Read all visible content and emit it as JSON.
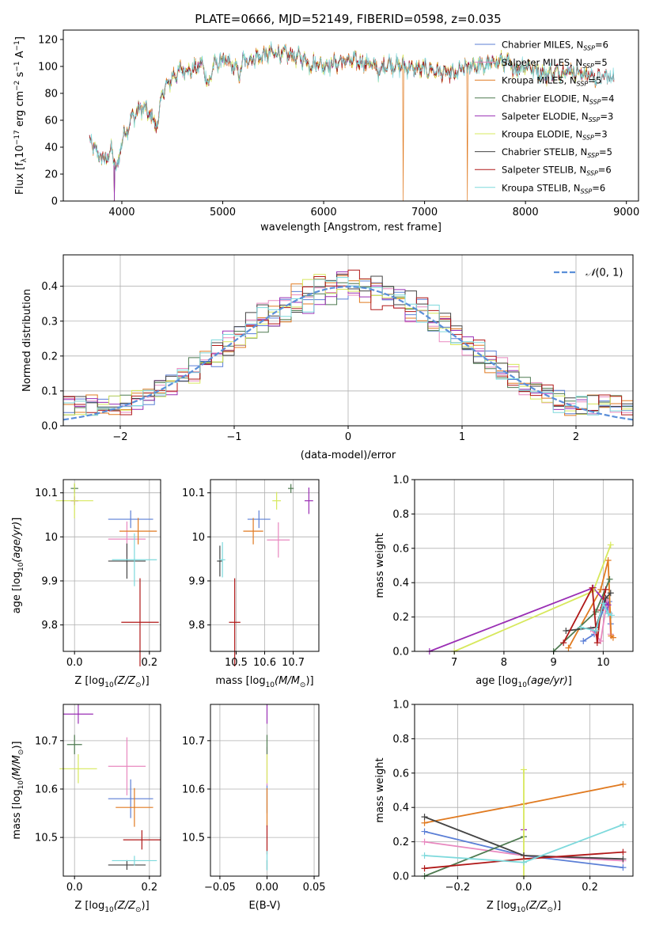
{
  "title": "PLATE=0666, MJD=52149, FIBERID=0598, z=0.035",
  "models": [
    {
      "name": "Chabrier MILES",
      "nssp": "6",
      "color": "#5b7fd6"
    },
    {
      "name": "Salpeter MILES",
      "nssp": "5",
      "color": "#e888bf"
    },
    {
      "name": "Kroupa MILES",
      "nssp": "5",
      "color": "#e07a20"
    },
    {
      "name": "Chabrier ELODIE",
      "nssp": "4",
      "color": "#4e7a50"
    },
    {
      "name": "Salpeter ELODIE",
      "nssp": "3",
      "color": "#9a2eb4"
    },
    {
      "name": "Kroupa ELODIE",
      "nssp": "3",
      "color": "#d7e85c"
    },
    {
      "name": "Chabrier STELIB",
      "nssp": "5",
      "color": "#444444"
    },
    {
      "name": "Salpeter STELIB",
      "nssp": "6",
      "color": "#b01818"
    },
    {
      "name": "Kroupa STELIB",
      "nssp": "6",
      "color": "#7dd9dc"
    }
  ],
  "chart_data": [
    {
      "type": "line",
      "title": "PLATE=0666, MJD=52149, FIBERID=0598, z=0.035",
      "xlabel": "wavelength [Angstrom, rest frame]",
      "ylabel_parts": [
        "Flux [f",
        "λ",
        "10",
        "−17",
        " erg cm",
        "−2",
        " s",
        "−1",
        " A",
        "−1",
        "]"
      ],
      "xlim": [
        3420,
        9120
      ],
      "ylim": [
        0,
        127
      ],
      "xticks": [
        4000,
        5000,
        6000,
        7000,
        8000,
        9000
      ],
      "yticks": [
        0,
        20,
        40,
        60,
        80,
        100,
        120
      ],
      "spectrum_anchors": [
        [
          3680,
          45
        ],
        [
          3760,
          35
        ],
        [
          3830,
          30
        ],
        [
          3900,
          38
        ],
        [
          3950,
          22
        ],
        [
          4000,
          45
        ],
        [
          4100,
          62
        ],
        [
          4200,
          70
        ],
        [
          4300,
          62
        ],
        [
          4350,
          55
        ],
        [
          4400,
          80
        ],
        [
          4500,
          92
        ],
        [
          4600,
          98
        ],
        [
          4700,
          97
        ],
        [
          4800,
          102
        ],
        [
          4860,
          85
        ],
        [
          4900,
          100
        ],
        [
          5000,
          105
        ],
        [
          5100,
          100
        ],
        [
          5175,
          95
        ],
        [
          5200,
          104
        ],
        [
          5300,
          106
        ],
        [
          5400,
          108
        ],
        [
          5500,
          110
        ],
        [
          5600,
          109
        ],
        [
          5700,
          108
        ],
        [
          5800,
          106
        ],
        [
          5890,
          100
        ],
        [
          5900,
          103
        ],
        [
          6000,
          101
        ],
        [
          6100,
          102
        ],
        [
          6200,
          104
        ],
        [
          6300,
          104
        ],
        [
          6400,
          103
        ],
        [
          6500,
          101
        ],
        [
          6563,
          95
        ],
        [
          6600,
          102
        ],
        [
          6700,
          101
        ],
        [
          6800,
          100
        ],
        [
          6900,
          98
        ],
        [
          7000,
          98
        ],
        [
          7100,
          97
        ],
        [
          7200,
          95
        ],
        [
          7300,
          94
        ],
        [
          7400,
          99
        ],
        [
          7500,
          101
        ],
        [
          7600,
          100
        ],
        [
          7700,
          104
        ],
        [
          7800,
          103
        ],
        [
          7900,
          98
        ],
        [
          8000,
          101
        ],
        [
          8200,
          94
        ],
        [
          8400,
          97
        ],
        [
          8500,
          96
        ],
        [
          8700,
          92
        ],
        [
          8880,
          92
        ]
      ],
      "legend_location": "upper right"
    },
    {
      "type": "histogram",
      "xlabel": "(data-model)/error",
      "ylabel": "Normed distribution",
      "xlim": [
        -2.5,
        2.5
      ],
      "ylim": [
        0,
        0.49
      ],
      "xticks": [
        -2,
        -1,
        0,
        1,
        2
      ],
      "yticks": [
        0.0,
        0.1,
        0.2,
        0.3,
        0.4
      ],
      "grid": true,
      "reference_curve": {
        "name": "N(0,1)",
        "mean": 0,
        "sigma": 1
      },
      "legend_location": "upper right"
    },
    {
      "type": "scatter",
      "xlabel": "Z [log10(Z/Z⊙)]",
      "ylabel": "age  [log10(age/yr)]",
      "xlim": [
        -0.03,
        0.23
      ],
      "ylim": [
        9.74,
        10.13
      ],
      "xticks": [
        0.0,
        0.2
      ],
      "yticks": [
        9.8,
        9.9,
        10.0,
        10.1
      ],
      "grid": true,
      "points": [
        {
          "model": "Chabrier MILES",
          "x": 0.15,
          "y": 10.04,
          "ex": 0.06,
          "ey": 0.02
        },
        {
          "model": "Salpeter MILES",
          "x": 0.14,
          "y": 9.995,
          "ex": 0.05,
          "ey": 0.04
        },
        {
          "model": "Kroupa MILES",
          "x": 0.17,
          "y": 10.013,
          "ex": 0.05,
          "ey": 0.03
        },
        {
          "model": "Chabrier ELODIE",
          "x": 0.0,
          "y": 10.11,
          "ex": 0.01,
          "ey": 0.01
        },
        {
          "model": "Salpeter ELODIE",
          "x": 0.0,
          "y": 10.082,
          "ex": 0.01,
          "ey": 0.01
        },
        {
          "model": "Kroupa ELODIE",
          "x": 0.0,
          "y": 10.082,
          "ex": 0.05,
          "ey": 0.04
        },
        {
          "model": "Chabrier STELIB",
          "x": 0.14,
          "y": 9.945,
          "ex": 0.05,
          "ey": 0.04
        },
        {
          "model": "Salpeter STELIB",
          "x": 0.175,
          "y": 9.806,
          "ex": 0.05,
          "ey": 0.1
        },
        {
          "model": "Kroupa STELIB",
          "x": 0.16,
          "y": 9.948,
          "ex": 0.06,
          "ey": 0.06
        }
      ]
    },
    {
      "type": "scatter",
      "xlabel": "mass [log10(M/M⊙)]",
      "xlim": [
        10.41,
        10.79
      ],
      "ylim": [
        9.74,
        10.13
      ],
      "xticks": [
        10.5,
        10.6,
        10.7
      ],
      "yticks": [
        9.8,
        9.9,
        10.0,
        10.1
      ],
      "grid": true,
      "points": [
        {
          "model": "Chabrier MILES",
          "x": 10.58,
          "y": 10.04,
          "ex": 0.04,
          "ey": 0.02
        },
        {
          "model": "Salpeter MILES",
          "x": 10.648,
          "y": 9.993,
          "ex": 0.04,
          "ey": 0.04
        },
        {
          "model": "Kroupa MILES",
          "x": 10.56,
          "y": 10.013,
          "ex": 0.035,
          "ey": 0.03
        },
        {
          "model": "Chabrier ELODIE",
          "x": 10.692,
          "y": 10.11,
          "ex": 0.01,
          "ey": 0.01
        },
        {
          "model": "Salpeter ELODIE",
          "x": 10.755,
          "y": 10.082,
          "ex": 0.015,
          "ey": 0.03
        },
        {
          "model": "Kroupa ELODIE",
          "x": 10.642,
          "y": 10.082,
          "ex": 0.015,
          "ey": 0.02
        },
        {
          "model": "Chabrier STELIB",
          "x": 10.443,
          "y": 9.945,
          "ex": 0.01,
          "ey": 0.035
        },
        {
          "model": "Salpeter STELIB",
          "x": 10.495,
          "y": 9.806,
          "ex": 0.02,
          "ey": 0.1
        },
        {
          "model": "Kroupa STELIB",
          "x": 10.452,
          "y": 9.948,
          "ex": 0.01,
          "ey": 0.04
        }
      ]
    },
    {
      "type": "line",
      "xlabel": "age  [log10(age/yr)]",
      "ylabel": "mass weight",
      "xlim": [
        6.2,
        10.6
      ],
      "ylim": [
        0,
        1
      ],
      "xticks": [
        7,
        8,
        9,
        10
      ],
      "yticks": [
        0.0,
        0.2,
        0.4,
        0.6,
        0.8,
        1.0
      ],
      "grid": true,
      "series": [
        {
          "model": "Chabrier MILES",
          "points": [
            [
              9.6,
              0.06
            ],
            [
              9.82,
              0.1
            ],
            [
              10.05,
              0.28
            ],
            [
              10.1,
              0.23
            ],
            [
              10.12,
              0.29
            ],
            [
              10.15,
              0.16
            ]
          ]
        },
        {
          "model": "Salpeter MILES",
          "points": [
            [
              9.75,
              0.13
            ],
            [
              9.95,
              0.06
            ],
            [
              10.08,
              0.3
            ],
            [
              10.13,
              0.22
            ],
            [
              10.15,
              0.1
            ]
          ]
        },
        {
          "model": "Kroupa MILES",
          "points": [
            [
              9.3,
              0.02
            ],
            [
              9.95,
              0.36
            ],
            [
              10.1,
              0.53
            ],
            [
              10.16,
              0.09
            ],
            [
              10.2,
              0.08
            ]
          ]
        },
        {
          "model": "Chabrier ELODIE",
          "points": [
            [
              9.0,
              0.0
            ],
            [
              9.85,
              0.23
            ],
            [
              10.13,
              0.42
            ]
          ]
        },
        {
          "model": "Salpeter ELODIE",
          "points": [
            [
              6.5,
              0.0
            ],
            [
              9.8,
              0.37
            ],
            [
              10.1,
              0.27
            ]
          ]
        },
        {
          "model": "Kroupa ELODIE",
          "points": [
            [
              7.0,
              0.0
            ],
            [
              9.8,
              0.35
            ],
            [
              10.15,
              0.62
            ]
          ]
        },
        {
          "model": "Chabrier STELIB",
          "points": [
            [
              9.25,
              0.12
            ],
            [
              9.85,
              0.14
            ],
            [
              10.05,
              0.31
            ],
            [
              10.15,
              0.34
            ]
          ]
        },
        {
          "model": "Salpeter STELIB",
          "points": [
            [
              9.2,
              0.05
            ],
            [
              9.78,
              0.37
            ],
            [
              9.88,
              0.05
            ],
            [
              9.95,
              0.24
            ],
            [
              10.05,
              0.36
            ]
          ]
        },
        {
          "model": "Kroupa STELIB",
          "points": [
            [
              9.55,
              0.14
            ],
            [
              9.85,
              0.12
            ],
            [
              10.0,
              0.28
            ],
            [
              10.1,
              0.22
            ],
            [
              10.17,
              0.21
            ]
          ]
        }
      ]
    },
    {
      "type": "scatter",
      "xlabel": "Z [log10(Z/Z⊙)]",
      "ylabel": "mass [log10(M/M⊙)]",
      "xlim": [
        -0.03,
        0.23
      ],
      "ylim": [
        10.42,
        10.775
      ],
      "xticks": [
        0.0,
        0.2
      ],
      "yticks": [
        10.5,
        10.6,
        10.7
      ],
      "grid": true,
      "points": [
        {
          "model": "Chabrier MILES",
          "x": 0.15,
          "y": 10.58,
          "ex": 0.06,
          "ey": 0.04
        },
        {
          "model": "Salpeter MILES",
          "x": 0.14,
          "y": 10.647,
          "ex": 0.05,
          "ey": 0.06
        },
        {
          "model": "Kroupa MILES",
          "x": 0.16,
          "y": 10.562,
          "ex": 0.05,
          "ey": 0.04
        },
        {
          "model": "Chabrier ELODIE",
          "x": 0.0,
          "y": 10.692,
          "ex": 0.02,
          "ey": 0.02
        },
        {
          "model": "Salpeter ELODIE",
          "x": 0.01,
          "y": 10.755,
          "ex": 0.04,
          "ey": 0.02
        },
        {
          "model": "Kroupa ELODIE",
          "x": 0.01,
          "y": 10.642,
          "ex": 0.05,
          "ey": 0.03
        },
        {
          "model": "Chabrier STELIB",
          "x": 0.14,
          "y": 10.443,
          "ex": 0.05,
          "ey": 0.01
        },
        {
          "model": "Salpeter STELIB",
          "x": 0.18,
          "y": 10.495,
          "ex": 0.05,
          "ey": 0.02
        },
        {
          "model": "Kroupa STELIB",
          "x": 0.16,
          "y": 10.452,
          "ex": 0.06,
          "ey": 0.01
        }
      ]
    },
    {
      "type": "scatter",
      "xlabel": "E(B-V)",
      "xlim": [
        -0.06,
        0.055
      ],
      "ylim": [
        10.42,
        10.775
      ],
      "xticks": [
        -0.05,
        0.0,
        0.05
      ],
      "yticks": [
        10.5,
        10.6,
        10.7
      ],
      "grid": true,
      "points": [
        {
          "model": "Chabrier MILES",
          "x": 0.0,
          "y": 10.58,
          "ex": 0,
          "ey": 0.03
        },
        {
          "model": "Salpeter MILES",
          "x": 0.0,
          "y": 10.647,
          "ex": 0,
          "ey": 0.04
        },
        {
          "model": "Kroupa MILES",
          "x": 0.0,
          "y": 10.562,
          "ex": 0,
          "ey": 0.04
        },
        {
          "model": "Chabrier ELODIE",
          "x": 0.0,
          "y": 10.692,
          "ex": 0,
          "ey": 0.02
        },
        {
          "model": "Salpeter ELODIE",
          "x": 0.0,
          "y": 10.755,
          "ex": 0,
          "ey": 0.02
        },
        {
          "model": "Kroupa ELODIE",
          "x": 0.0,
          "y": 10.642,
          "ex": 0,
          "ey": 0.03
        },
        {
          "model": "Chabrier STELIB",
          "x": 0.0,
          "y": 10.443,
          "ex": 0,
          "ey": 0.01
        },
        {
          "model": "Salpeter STELIB",
          "x": 0.0,
          "y": 10.495,
          "ex": 0,
          "ey": 0.03
        },
        {
          "model": "Kroupa STELIB",
          "x": 0.0,
          "y": 10.452,
          "ex": 0,
          "ey": 0.02
        }
      ]
    },
    {
      "type": "line",
      "xlabel": "Z [log10(Z/Z⊙)]",
      "ylabel": "mass weight",
      "xlim": [
        -0.33,
        0.33
      ],
      "ylim": [
        0,
        1
      ],
      "xticks": [
        -0.2,
        0.0,
        0.2
      ],
      "yticks": [
        0.0,
        0.2,
        0.4,
        0.6,
        0.8,
        1.0
      ],
      "grid": true,
      "series": [
        {
          "model": "Chabrier MILES",
          "points": [
            [
              -0.3,
              0.26
            ],
            [
              0.0,
              0.12
            ],
            [
              0.3,
              0.05
            ]
          ]
        },
        {
          "model": "Salpeter MILES",
          "points": [
            [
              -0.3,
              0.2
            ],
            [
              0.0,
              0.12
            ],
            [
              0.3,
              0.09
            ]
          ]
        },
        {
          "model": "Kroupa MILES",
          "points": [
            [
              -0.3,
              0.31
            ],
            [
              0.0,
              0.42
            ],
            [
              0.3,
              0.535
            ]
          ]
        },
        {
          "model": "Chabrier ELODIE",
          "points": [
            [
              -0.3,
              0.0
            ],
            [
              0.0,
              0.23
            ]
          ]
        },
        {
          "model": "Salpeter ELODIE",
          "points": [
            [
              0.0,
              0.27
            ]
          ]
        },
        {
          "model": "Kroupa ELODIE",
          "points": [
            [
              0.0,
              0.62
            ],
            [
              0.0,
              0.0
            ]
          ]
        },
        {
          "model": "Chabrier STELIB",
          "points": [
            [
              -0.3,
              0.345
            ],
            [
              0.0,
              0.12
            ],
            [
              0.3,
              0.1
            ]
          ]
        },
        {
          "model": "Salpeter STELIB",
          "points": [
            [
              -0.3,
              0.045
            ],
            [
              0.0,
              0.1
            ],
            [
              0.3,
              0.14
            ]
          ]
        },
        {
          "model": "Kroupa STELIB",
          "points": [
            [
              -0.3,
              0.12
            ],
            [
              0.0,
              0.08
            ],
            [
              0.3,
              0.3
            ]
          ]
        }
      ]
    }
  ]
}
